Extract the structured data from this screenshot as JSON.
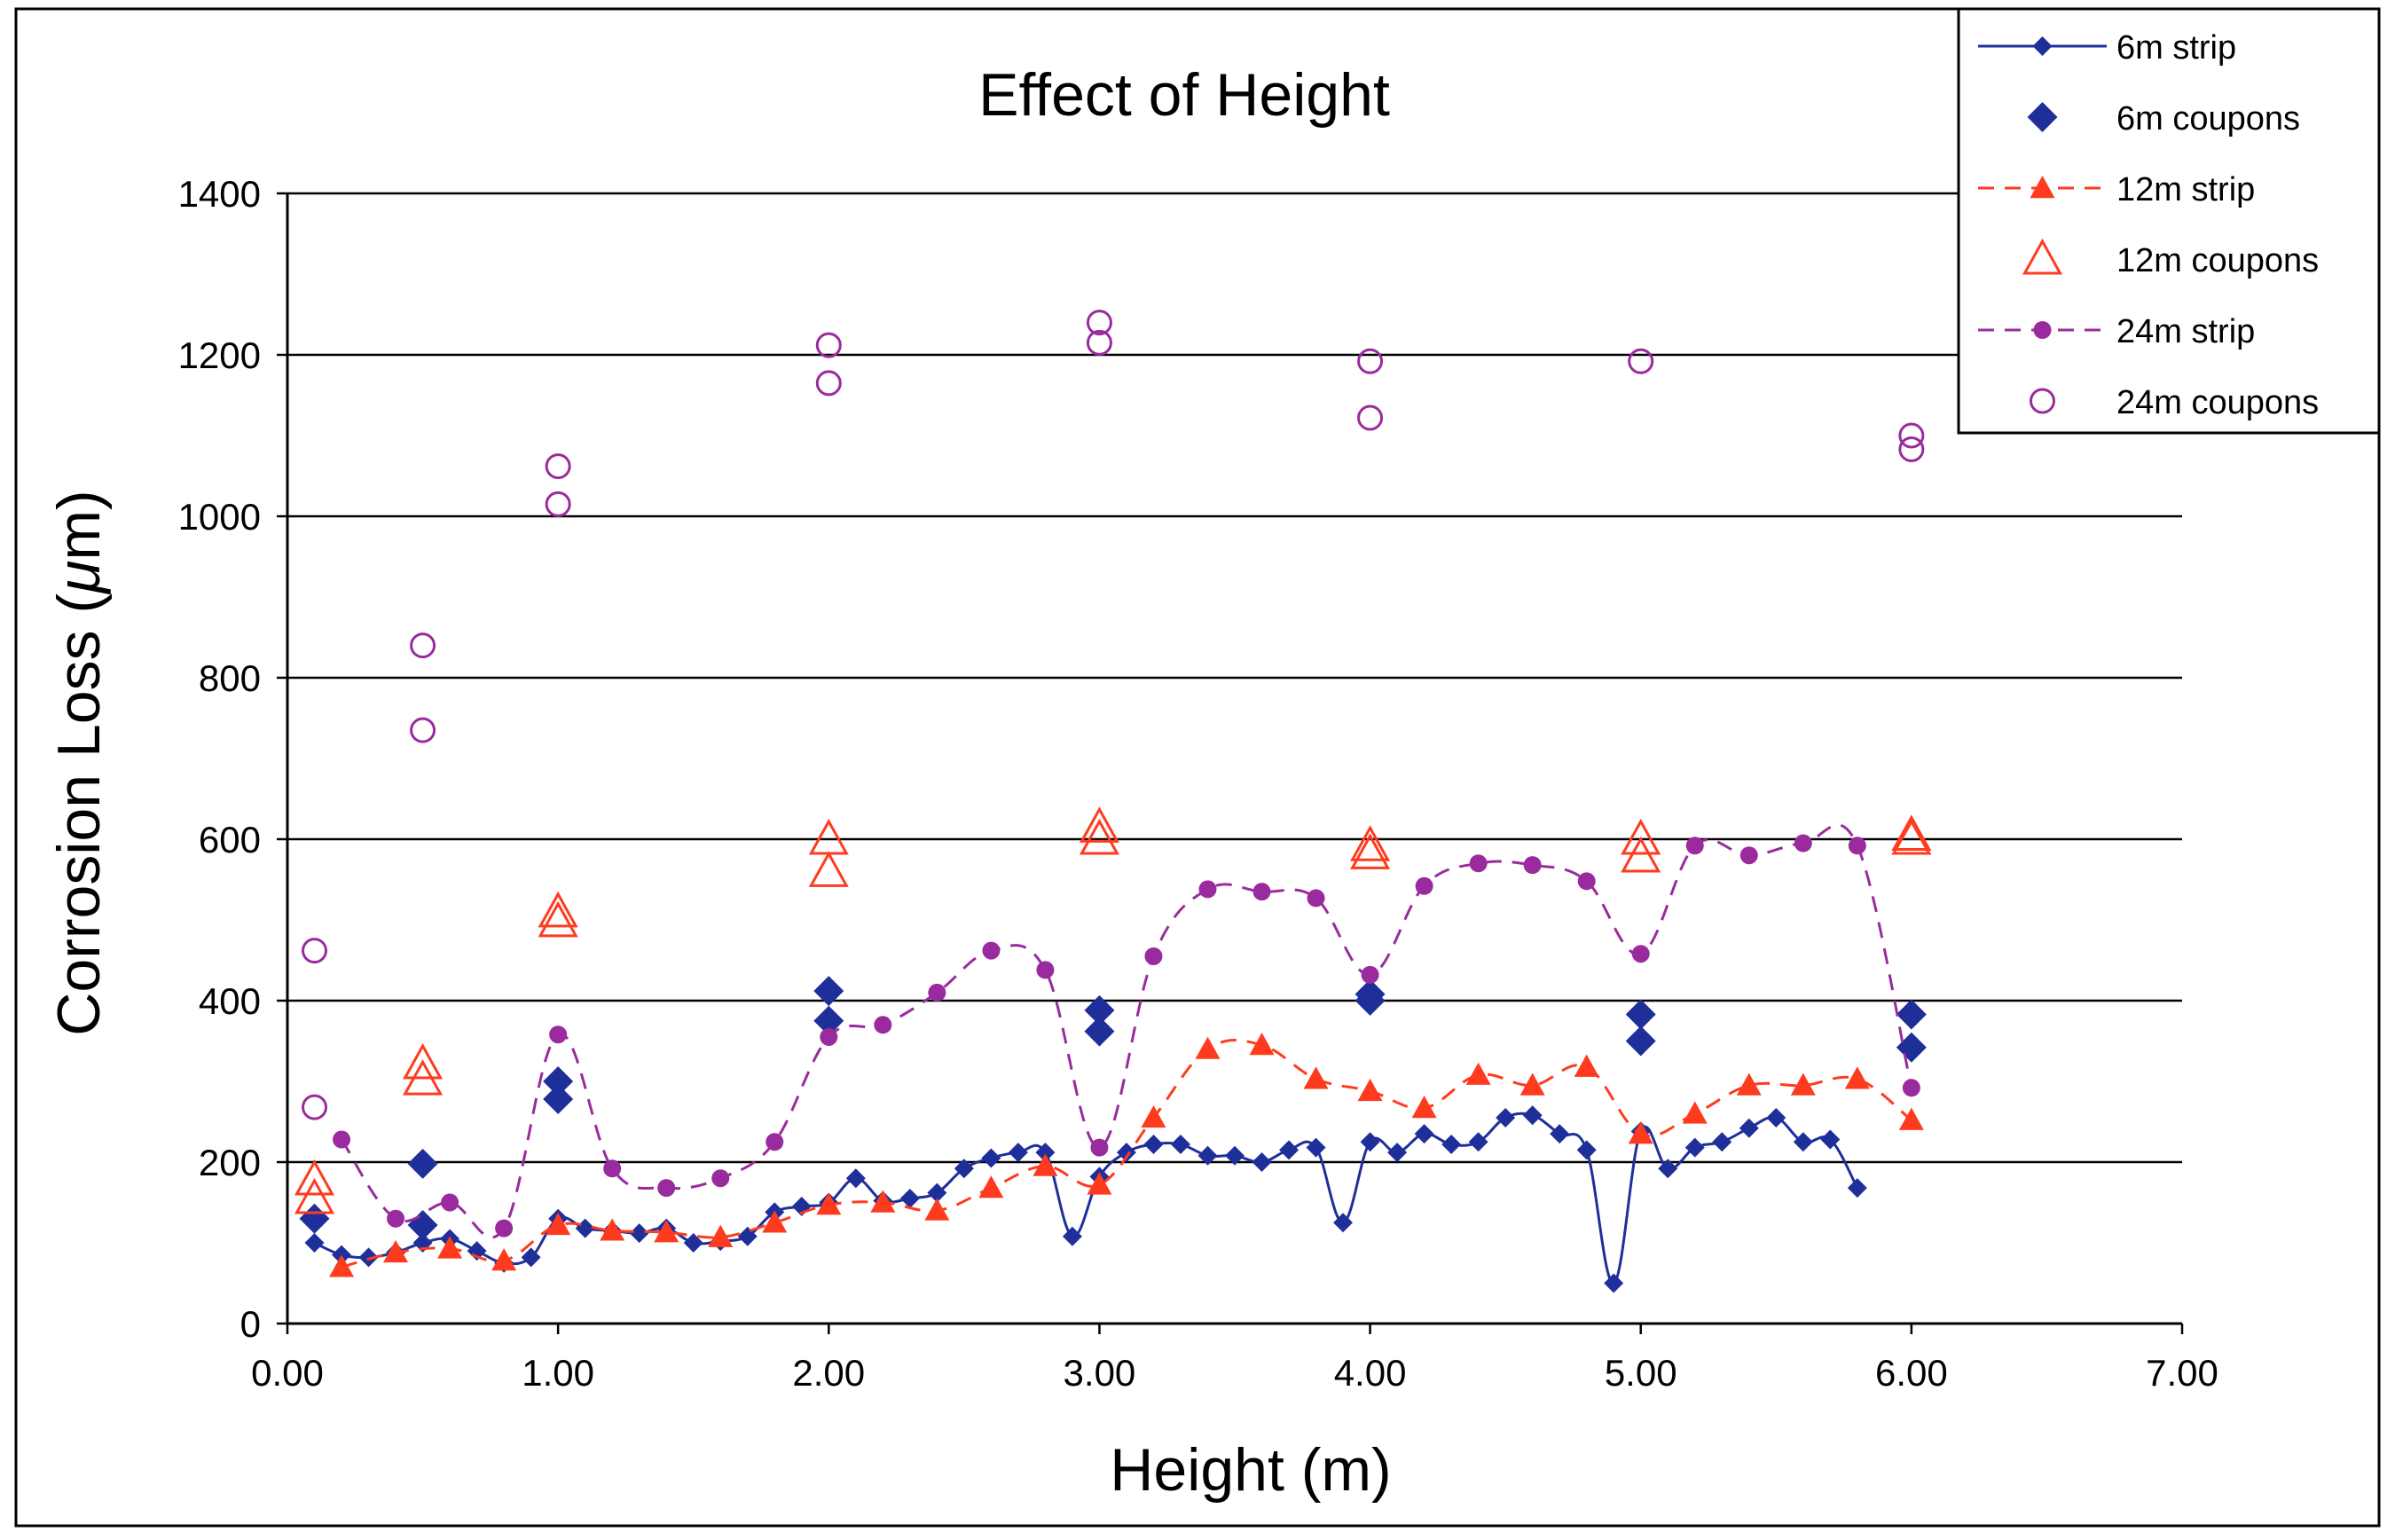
{
  "chart_data": {
    "type": "line",
    "title": "Effect of Height",
    "xlabel": "Height (m)",
    "ylabel_main": "Corrosion Loss (",
    "ylabel_mu": "μ",
    "ylabel_unit": "m)",
    "xlim": [
      0,
      7
    ],
    "ylim": [
      0,
      1400
    ],
    "x_ticks": [
      0,
      1,
      2,
      3,
      4,
      5,
      6,
      7
    ],
    "x_tick_labels": [
      "0.00",
      "1.00",
      "2.00",
      "3.00",
      "4.00",
      "5.00",
      "6.00",
      "7.00"
    ],
    "y_ticks": [
      0,
      200,
      400,
      600,
      800,
      1000,
      1200,
      1400
    ],
    "y_tick_labels": [
      "0",
      "200",
      "400",
      "600",
      "800",
      "1000",
      "1200",
      "1400"
    ],
    "grid": true,
    "legend_position": "top-right",
    "series": [
      {
        "name": "6m strip",
        "color": "#1f2f9a",
        "style": "line-marker",
        "marker": "diamond",
        "dash": "solid",
        "x": [
          0.1,
          0.2,
          0.3,
          0.4,
          0.5,
          0.6,
          0.7,
          0.8,
          0.9,
          1.0,
          1.1,
          1.2,
          1.3,
          1.4,
          1.5,
          1.6,
          1.7,
          1.8,
          1.9,
          2.0,
          2.1,
          2.2,
          2.3,
          2.4,
          2.5,
          2.6,
          2.7,
          2.8,
          2.9,
          3.0,
          3.1,
          3.2,
          3.3,
          3.4,
          3.5,
          3.6,
          3.7,
          3.8,
          3.9,
          4.0,
          4.1,
          4.2,
          4.3,
          4.4,
          4.5,
          4.6,
          4.7,
          4.8,
          4.9,
          5.0,
          5.1,
          5.2,
          5.3,
          5.4,
          5.5,
          5.6,
          5.7,
          5.8
        ],
        "y": [
          100,
          85,
          82,
          88,
          100,
          105,
          90,
          75,
          82,
          130,
          118,
          115,
          112,
          118,
          100,
          102,
          108,
          138,
          145,
          150,
          180,
          152,
          155,
          162,
          192,
          205,
          212,
          212,
          108,
          182,
          212,
          222,
          222,
          208,
          208,
          200,
          215,
          218,
          125,
          225,
          212,
          235,
          222,
          225,
          255,
          258,
          235,
          215,
          50,
          238,
          192,
          218,
          225,
          242,
          255,
          225,
          228,
          168
        ]
      },
      {
        "name": "6m coupons",
        "color": "#1f2f9a",
        "style": "marker",
        "marker": "diamond-large",
        "x": [
          0.1,
          0.5,
          0.5,
          1.0,
          1.0,
          2.0,
          2.0,
          3.0,
          3.0,
          4.0,
          4.0,
          5.0,
          5.0,
          6.0,
          6.0
        ],
        "y": [
          130,
          198,
          122,
          300,
          278,
          412,
          375,
          388,
          362,
          408,
          400,
          383,
          350,
          383,
          342
        ]
      },
      {
        "name": "12m strip",
        "color": "#ff3b1f",
        "style": "line-marker",
        "marker": "triangle",
        "dash": "dashed",
        "x": [
          0.2,
          0.4,
          0.6,
          0.8,
          1.0,
          1.2,
          1.4,
          1.6,
          1.8,
          2.0,
          2.2,
          2.4,
          2.6,
          2.8,
          3.0,
          3.2,
          3.4,
          3.6,
          3.8,
          4.0,
          4.2,
          4.4,
          4.6,
          4.8,
          5.0,
          5.2,
          5.4,
          5.6,
          5.8,
          6.0
        ],
        "y": [
          70,
          88,
          93,
          78,
          122,
          115,
          113,
          107,
          125,
          147,
          150,
          140,
          168,
          195,
          172,
          255,
          340,
          345,
          303,
          288,
          267,
          308,
          295,
          318,
          235,
          260,
          295,
          295,
          303,
          252
        ]
      },
      {
        "name": "12m coupons",
        "color": "#ff3b1f",
        "style": "marker",
        "marker": "triangle-open",
        "x": [
          0.1,
          0.1,
          0.5,
          0.5,
          1.0,
          1.0,
          2.0,
          2.0,
          3.0,
          3.0,
          4.0,
          4.0,
          5.0,
          5.0,
          6.0,
          6.0
        ],
        "y": [
          178,
          155,
          322,
          302,
          510,
          498,
          600,
          560,
          615,
          600,
          592,
          582,
          600,
          578,
          605,
          600
        ]
      },
      {
        "name": "24m strip",
        "color": "#9a2b9e",
        "style": "line-marker",
        "marker": "circle",
        "dash": "dashed",
        "x": [
          0.2,
          0.4,
          0.6,
          0.8,
          1.0,
          1.2,
          1.4,
          1.6,
          1.8,
          2.0,
          2.2,
          2.4,
          2.6,
          2.8,
          3.0,
          3.2,
          3.4,
          3.6,
          3.8,
          4.0,
          4.2,
          4.4,
          4.6,
          4.8,
          5.0,
          5.2,
          5.4,
          5.6,
          5.8,
          6.0
        ],
        "y": [
          228,
          130,
          150,
          118,
          358,
          192,
          168,
          180,
          225,
          355,
          370,
          410,
          462,
          438,
          218,
          455,
          538,
          535,
          527,
          432,
          542,
          570,
          568,
          548,
          458,
          592,
          580,
          595,
          592,
          292
        ]
      },
      {
        "name": "24m coupons",
        "color": "#9a2b9e",
        "style": "marker",
        "marker": "circle-open",
        "x": [
          0.1,
          0.1,
          0.5,
          0.5,
          1.0,
          1.0,
          2.0,
          2.0,
          3.0,
          3.0,
          4.0,
          4.0,
          5.0,
          6.0,
          6.0
        ],
        "y": [
          462,
          268,
          840,
          735,
          1062,
          1015,
          1212,
          1165,
          1240,
          1215,
          1192,
          1122,
          1192,
          1100,
          1083
        ]
      }
    ]
  }
}
